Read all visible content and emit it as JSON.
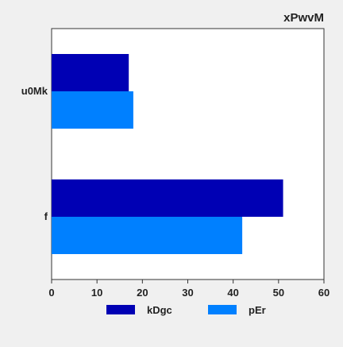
{
  "chart_data": {
    "type": "bar",
    "orientation": "horizontal",
    "title": "xPwvM",
    "title_position": "top-right",
    "categories": [
      "u0Mk",
      "f"
    ],
    "series": [
      {
        "name": "kDgc",
        "values": [
          17,
          51
        ],
        "color": "#0000b4"
      },
      {
        "name": "pEr",
        "values": [
          18,
          42
        ],
        "color": "#0080ff"
      }
    ],
    "xlim": [
      0,
      60
    ],
    "x_ticks": [
      "0",
      "10",
      "20",
      "30",
      "40",
      "50",
      "60"
    ],
    "xlabel": "",
    "ylabel": "",
    "grid": false,
    "legend_placement": "bottom",
    "colors": {
      "background": "#f0f0f0",
      "plot_area": "#ffffff",
      "axis": "#333333",
      "text": "#222222"
    }
  }
}
